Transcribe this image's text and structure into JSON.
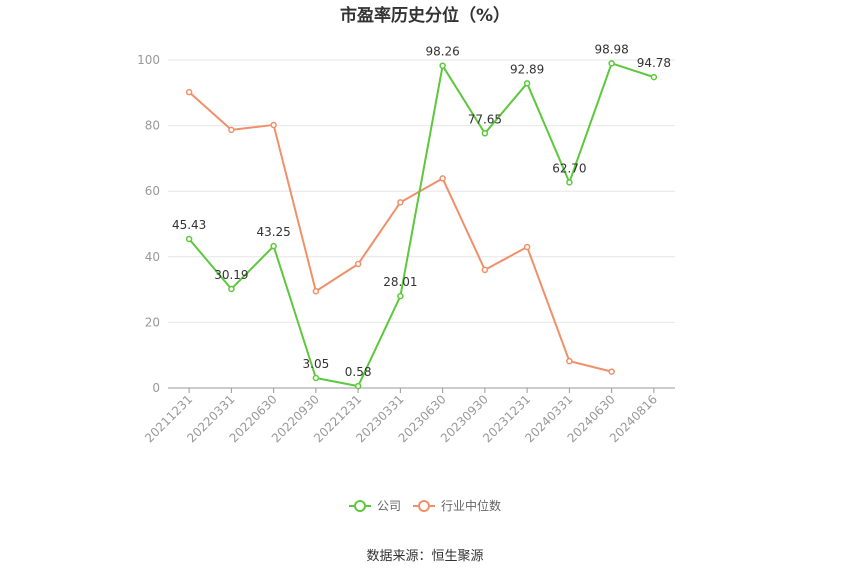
{
  "chart_data": {
    "type": "line",
    "title": "市盈率历史分位（%）",
    "categories": [
      "20211231",
      "20220331",
      "20220630",
      "20220930",
      "20221231",
      "20230331",
      "20230630",
      "20230930",
      "20231231",
      "20240331",
      "20240630",
      "20240816"
    ],
    "ylim": [
      0,
      100
    ],
    "yticks": [
      0,
      20,
      40,
      60,
      80,
      100
    ],
    "grid": true,
    "legend_position": "bottom",
    "series": [
      {
        "name": "公司",
        "color": "#5cc83c",
        "values": [
          45.43,
          30.19,
          43.25,
          3.05,
          0.58,
          28.01,
          98.26,
          77.65,
          92.89,
          62.7,
          98.98,
          94.78
        ],
        "labels": [
          "45.43",
          "30.19",
          "43.25",
          "3.05",
          "0.58",
          "28.01",
          "98.26",
          "77.65",
          "92.89",
          "62.70",
          "98.98",
          "94.78"
        ]
      },
      {
        "name": "行业中位数",
        "color": "#f0906a",
        "values": [
          90.2,
          78.7,
          80.2,
          29.5,
          37.8,
          56.6,
          63.9,
          36.0,
          43.0,
          8.2,
          5.0,
          null
        ]
      }
    ]
  },
  "source": "数据来源：恒生聚源"
}
